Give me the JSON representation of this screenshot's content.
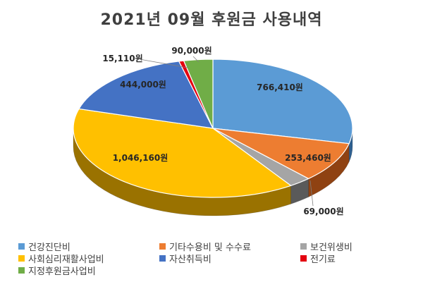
{
  "chart_data": {
    "type": "pie",
    "title": "2021년 09월 후원금 사용내역",
    "slices": [
      {
        "name": "건강진단비",
        "value": 766410,
        "label": "766,410원",
        "color": "#5b9bd5",
        "side": "#2e5f8f"
      },
      {
        "name": "기타수용비 및 수수료",
        "value": 253460,
        "label": "253,460원",
        "color": "#ed7d31",
        "side": "#8f4212"
      },
      {
        "name": "보건위생비",
        "value": 69000,
        "label": "69,000원",
        "color": "#a5a5a5",
        "side": "#5a5a5a"
      },
      {
        "name": "사회심리재활사업비",
        "value": 1046160,
        "label": "1,046,160원",
        "color": "#ffc000",
        "side": "#9a7200"
      },
      {
        "name": "자산취득비",
        "value": 444000,
        "label": "444,000원",
        "color": "#4472c4",
        "side": "#22407a"
      },
      {
        "name": "전기료",
        "value": 15110,
        "label": "15,110원",
        "color": "#e3000f",
        "side": "#7a0008"
      },
      {
        "name": "지정후원금사업비",
        "value": 90000,
        "label": "90,000원",
        "color": "#70ad47",
        "side": "#3c6a21"
      }
    ],
    "legend_position": "bottom"
  }
}
